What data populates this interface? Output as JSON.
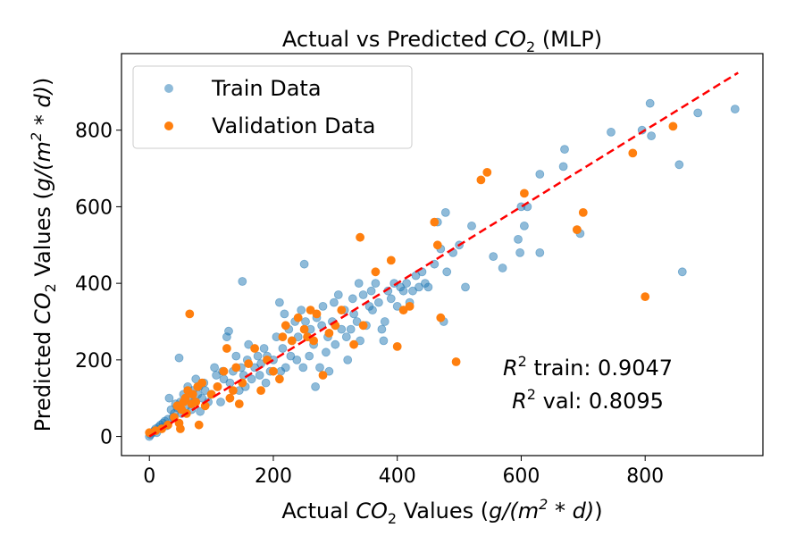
{
  "chart_data": {
    "type": "scatter",
    "title": {
      "pre": "Actual vs Predicted ",
      "var": "CO",
      "sub": "2",
      "post": " (MLP)"
    },
    "xlabel": {
      "pre": "Actual ",
      "var": "CO",
      "sub": "2",
      "mid": " Values (",
      "unit": "g/(m",
      "sup": "2",
      "unit2": " * d)",
      "post": ")"
    },
    "ylabel": {
      "pre": "Predicted ",
      "var": "CO",
      "sub": "2",
      "mid": " Values (",
      "unit": "g/(m",
      "sup": "2",
      "unit2": " * d)",
      "post": ")"
    },
    "xlim": [
      -45,
      990
    ],
    "ylim": [
      -50,
      1000
    ],
    "xticks": [
      0,
      200,
      400,
      600,
      800
    ],
    "yticks": [
      0,
      200,
      400,
      600,
      800
    ],
    "grid": false,
    "legend_position": "top-left",
    "reference_line": {
      "x": [
        0,
        950
      ],
      "y": [
        0,
        950
      ],
      "color": "#ff0000",
      "style": "dashed"
    },
    "annotations": [
      {
        "var": "R",
        "sup": "2",
        "text": " train: 0.9047"
      },
      {
        "var": "R",
        "sup": "2",
        "text": " val: 0.8095"
      }
    ],
    "series": [
      {
        "name": "Train Data",
        "color": "#1f77b4",
        "opacity": 0.5,
        "points": [
          [
            0,
            0
          ],
          [
            2,
            5
          ],
          [
            5,
            10
          ],
          [
            8,
            15
          ],
          [
            10,
            20
          ],
          [
            12,
            10
          ],
          [
            15,
            25
          ],
          [
            18,
            30
          ],
          [
            20,
            22
          ],
          [
            22,
            35
          ],
          [
            25,
            40
          ],
          [
            28,
            28
          ],
          [
            30,
            45
          ],
          [
            32,
            100
          ],
          [
            35,
            70
          ],
          [
            38,
            50
          ],
          [
            40,
            60
          ],
          [
            42,
            85
          ],
          [
            45,
            75
          ],
          [
            48,
            205
          ],
          [
            50,
            90
          ],
          [
            52,
            60
          ],
          [
            55,
            110
          ],
          [
            58,
            95
          ],
          [
            60,
            80
          ],
          [
            62,
            130
          ],
          [
            65,
            100
          ],
          [
            68,
            70
          ],
          [
            70,
            120
          ],
          [
            72,
            90
          ],
          [
            75,
            150
          ],
          [
            78,
            110
          ],
          [
            80,
            130
          ],
          [
            82,
            65
          ],
          [
            85,
            100
          ],
          [
            88,
            140
          ],
          [
            90,
            120
          ],
          [
            95,
            90
          ],
          [
            100,
            110
          ],
          [
            105,
            180
          ],
          [
            108,
            160
          ],
          [
            110,
            130
          ],
          [
            115,
            90
          ],
          [
            118,
            170
          ],
          [
            120,
            150
          ],
          [
            125,
            260
          ],
          [
            128,
            275
          ],
          [
            130,
            140
          ],
          [
            135,
            170
          ],
          [
            140,
            210
          ],
          [
            145,
            120
          ],
          [
            148,
            180
          ],
          [
            150,
            405
          ],
          [
            152,
            160
          ],
          [
            155,
            130
          ],
          [
            158,
            200
          ],
          [
            160,
            240
          ],
          [
            165,
            150
          ],
          [
            170,
            180
          ],
          [
            175,
            210
          ],
          [
            178,
            160
          ],
          [
            180,
            190
          ],
          [
            185,
            230
          ],
          [
            188,
            140
          ],
          [
            190,
            210
          ],
          [
            195,
            170
          ],
          [
            200,
            200
          ],
          [
            205,
            260
          ],
          [
            210,
            350
          ],
          [
            212,
            170
          ],
          [
            215,
            230
          ],
          [
            218,
            320
          ],
          [
            220,
            180
          ],
          [
            225,
            280
          ],
          [
            228,
            210
          ],
          [
            230,
            250
          ],
          [
            235,
            300
          ],
          [
            238,
            200
          ],
          [
            240,
            260
          ],
          [
            245,
            330
          ],
          [
            248,
            180
          ],
          [
            250,
            450
          ],
          [
            252,
            300
          ],
          [
            255,
            260
          ],
          [
            258,
            210
          ],
          [
            260,
            280
          ],
          [
            265,
            240
          ],
          [
            268,
            130
          ],
          [
            270,
            310
          ],
          [
            275,
            180
          ],
          [
            278,
            290
          ],
          [
            280,
            340
          ],
          [
            285,
            220
          ],
          [
            288,
            260
          ],
          [
            290,
            170
          ],
          [
            295,
            300
          ],
          [
            298,
            350
          ],
          [
            300,
            240
          ],
          [
            305,
            370
          ],
          [
            310,
            280
          ],
          [
            315,
            330
          ],
          [
            318,
            260
          ],
          [
            320,
            200
          ],
          [
            325,
            280
          ],
          [
            328,
            360
          ],
          [
            330,
            320
          ],
          [
            335,
            300
          ],
          [
            338,
            400
          ],
          [
            340,
            250
          ],
          [
            345,
            370
          ],
          [
            350,
            290
          ],
          [
            355,
            340
          ],
          [
            358,
            380
          ],
          [
            360,
            330
          ],
          [
            365,
            400
          ],
          [
            370,
            350
          ],
          [
            375,
            280
          ],
          [
            378,
            250
          ],
          [
            380,
            300
          ],
          [
            385,
            380
          ],
          [
            390,
            360
          ],
          [
            395,
            400
          ],
          [
            400,
            340
          ],
          [
            405,
            390
          ],
          [
            410,
            380
          ],
          [
            415,
            400
          ],
          [
            420,
            350
          ],
          [
            425,
            380
          ],
          [
            430,
            420
          ],
          [
            435,
            390
          ],
          [
            440,
            430
          ],
          [
            445,
            400
          ],
          [
            450,
            390
          ],
          [
            460,
            450
          ],
          [
            465,
            560
          ],
          [
            470,
            490
          ],
          [
            475,
            300
          ],
          [
            478,
            585
          ],
          [
            480,
            430
          ],
          [
            490,
            480
          ],
          [
            500,
            500
          ],
          [
            510,
            390
          ],
          [
            520,
            550
          ],
          [
            555,
            470
          ],
          [
            570,
            440
          ],
          [
            595,
            515
          ],
          [
            598,
            480
          ],
          [
            600,
            600
          ],
          [
            605,
            550
          ],
          [
            610,
            600
          ],
          [
            630,
            480
          ],
          [
            630,
            685
          ],
          [
            668,
            705
          ],
          [
            670,
            750
          ],
          [
            690,
            540
          ],
          [
            695,
            530
          ],
          [
            745,
            795
          ],
          [
            795,
            800
          ],
          [
            808,
            870
          ],
          [
            810,
            785
          ],
          [
            855,
            710
          ],
          [
            860,
            430
          ],
          [
            885,
            845
          ],
          [
            945,
            855
          ]
        ]
      },
      {
        "name": "Validation Data",
        "color": "#ff7f0e",
        "opacity": 1,
        "points": [
          [
            0,
            10
          ],
          [
            10,
            15
          ],
          [
            20,
            20
          ],
          [
            30,
            30
          ],
          [
            40,
            50
          ],
          [
            45,
            80
          ],
          [
            48,
            35
          ],
          [
            50,
            20
          ],
          [
            52,
            70
          ],
          [
            55,
            90
          ],
          [
            58,
            100
          ],
          [
            60,
            60
          ],
          [
            62,
            120
          ],
          [
            65,
            320
          ],
          [
            68,
            85
          ],
          [
            70,
            110
          ],
          [
            75,
            90
          ],
          [
            78,
            130
          ],
          [
            80,
            30
          ],
          [
            85,
            140
          ],
          [
            90,
            80
          ],
          [
            100,
            110
          ],
          [
            110,
            130
          ],
          [
            120,
            170
          ],
          [
            125,
            230
          ],
          [
            130,
            100
          ],
          [
            135,
            120
          ],
          [
            140,
            180
          ],
          [
            145,
            85
          ],
          [
            150,
            140
          ],
          [
            160,
            190
          ],
          [
            170,
            230
          ],
          [
            180,
            120
          ],
          [
            190,
            200
          ],
          [
            200,
            170
          ],
          [
            210,
            150
          ],
          [
            215,
            260
          ],
          [
            220,
            290
          ],
          [
            230,
            250
          ],
          [
            240,
            310
          ],
          [
            250,
            280
          ],
          [
            255,
            260
          ],
          [
            260,
            330
          ],
          [
            265,
            250
          ],
          [
            270,
            320
          ],
          [
            280,
            160
          ],
          [
            290,
            270
          ],
          [
            300,
            290
          ],
          [
            310,
            330
          ],
          [
            330,
            240
          ],
          [
            340,
            520
          ],
          [
            345,
            290
          ],
          [
            365,
            430
          ],
          [
            390,
            460
          ],
          [
            400,
            235
          ],
          [
            410,
            330
          ],
          [
            420,
            340
          ],
          [
            460,
            560
          ],
          [
            465,
            500
          ],
          [
            470,
            310
          ],
          [
            495,
            195
          ],
          [
            535,
            670
          ],
          [
            545,
            690
          ],
          [
            605,
            635
          ],
          [
            690,
            540
          ],
          [
            700,
            585
          ],
          [
            780,
            740
          ],
          [
            800,
            365
          ],
          [
            845,
            810
          ]
        ]
      }
    ]
  }
}
